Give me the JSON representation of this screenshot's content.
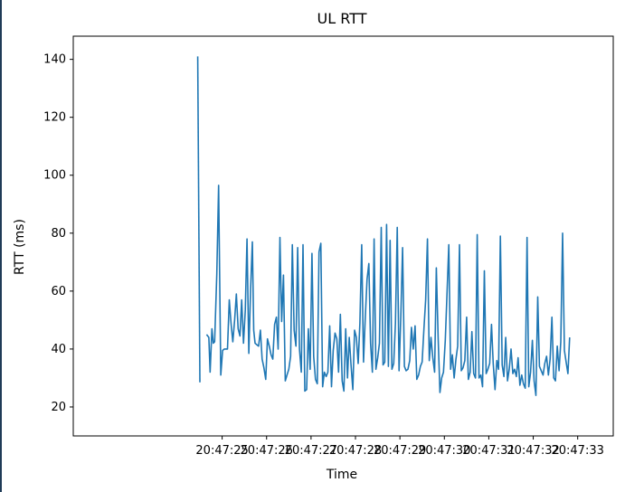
{
  "chart_data": {
    "type": "line",
    "title": "UL RTT",
    "xlabel": "Time",
    "ylabel": "RTT (ms)",
    "ylim": [
      10,
      148
    ],
    "xlim": [
      -3.35,
      8.8
    ],
    "yticks": [
      20,
      40,
      60,
      80,
      100,
      120,
      140
    ],
    "x_tick_labels": [
      "20:47:25",
      "20:47:26",
      "20:47:27",
      "20:47:28",
      "20:47:29",
      "20:47:30",
      "20:47:31",
      "20:47:32",
      "20:47:33"
    ],
    "x_tick_values": [
      0,
      1,
      2,
      3,
      4,
      5,
      6,
      7,
      8
    ],
    "grid": false,
    "legend": "none",
    "line_color": "#1f77b4",
    "series": [
      {
        "segments": [
          {
            "x": [
              -0.55,
              -0.5
            ],
            "y": [
              141,
              28.5
            ]
          },
          {
            "x": [
              -0.35,
              -0.3,
              -0.27,
              -0.23,
              -0.2,
              -0.17,
              -0.12,
              -0.08,
              -0.03,
              0.01,
              0.05,
              0.08,
              0.12,
              0.16,
              0.2,
              0.24,
              0.28,
              0.32,
              0.36,
              0.4,
              0.44,
              0.48,
              0.52,
              0.56,
              0.6,
              0.64,
              0.68,
              0.71,
              0.74,
              0.78,
              0.82,
              0.86,
              0.9,
              0.94,
              0.98,
              1.02,
              1.06,
              1.1,
              1.14,
              1.18,
              1.22,
              1.26,
              1.3,
              1.34,
              1.38,
              1.42,
              1.46,
              1.5,
              1.54,
              1.58,
              1.62,
              1.66,
              1.7,
              1.74,
              1.78,
              1.82,
              1.86,
              1.9,
              1.94,
              1.98,
              2.02,
              2.06,
              2.1,
              2.14,
              2.18,
              2.22,
              2.26,
              2.3,
              2.34,
              2.38,
              2.42,
              2.46,
              2.5,
              2.54,
              2.58,
              2.62,
              2.66,
              2.7,
              2.74,
              2.78,
              2.82,
              2.86,
              2.9,
              2.94,
              2.98,
              3.02,
              3.06,
              3.1,
              3.14,
              3.18,
              3.22,
              3.26,
              3.3,
              3.34,
              3.38,
              3.42,
              3.46,
              3.5,
              3.54,
              3.58,
              3.62,
              3.66,
              3.7,
              3.74,
              3.78,
              3.82,
              3.86,
              3.9,
              3.94,
              3.98,
              4.02,
              4.06,
              4.1,
              4.14,
              4.18,
              4.22,
              4.26,
              4.3,
              4.34,
              4.38,
              4.42,
              4.46,
              4.5,
              4.54,
              4.58,
              4.62,
              4.66,
              4.7,
              4.74,
              4.78,
              4.82,
              4.86,
              4.9,
              4.94,
              4.98,
              5.02,
              5.06,
              5.1,
              5.14,
              5.18,
              5.22,
              5.26,
              5.3,
              5.34,
              5.38,
              5.42,
              5.46,
              5.5,
              5.54,
              5.58,
              5.62,
              5.66,
              5.7,
              5.74,
              5.78,
              5.82,
              5.86,
              5.9,
              5.94,
              5.98,
              6.02,
              6.06,
              6.1,
              6.14,
              6.18,
              6.22,
              6.26,
              6.3,
              6.34,
              6.38,
              6.42,
              6.46,
              6.5,
              6.54,
              6.58,
              6.62,
              6.66,
              6.7,
              6.74,
              6.78,
              6.82,
              6.86,
              6.9,
              6.94,
              6.98,
              7.02,
              7.06,
              7.1,
              7.14,
              7.18,
              7.22,
              7.26,
              7.3,
              7.34,
              7.38,
              7.42,
              7.46,
              7.5,
              7.54,
              7.58,
              7.62,
              7.66,
              7.7,
              7.74,
              7.78,
              7.82
            ],
            "y": [
              45,
              44,
              32,
              47,
              42,
              42.5,
              66,
              96.5,
              31,
              39.5,
              40,
              40,
              40,
              57,
              49,
              42.5,
              50,
              59,
              47,
              44.5,
              57,
              42,
              53.5,
              78,
              38.5,
              61,
              77,
              46.5,
              42,
              41.5,
              41,
              46.5,
              36.5,
              33.5,
              29.5,
              43.5,
              41,
              38,
              36.5,
              48.5,
              51,
              40,
              78.5,
              49.5,
              65.5,
              29,
              31,
              33,
              37.5,
              76,
              46.5,
              41,
              75,
              40,
              32,
              76,
              25.5,
              26,
              47,
              33,
              73,
              37.5,
              29.5,
              28,
              73.5,
              76.5,
              27,
              32,
              30.5,
              32,
              48,
              27,
              39.5,
              45.5,
              43.5,
              32,
              52,
              29,
              25.5,
              47,
              30,
              44,
              34.5,
              26,
              46.5,
              44,
              35,
              49,
              76,
              35.5,
              50.5,
              64,
              69.5,
              42,
              32,
              78,
              33,
              37,
              42,
              82,
              34.5,
              35.5,
              83,
              34,
              77.5,
              33,
              35,
              49,
              82,
              32.5,
              51,
              75,
              34,
              32.5,
              33,
              36,
              47.5,
              40,
              48,
              29.5,
              31,
              34,
              35.5,
              47,
              57,
              78,
              36,
              44,
              37,
              32,
              68,
              44,
              25,
              30,
              32,
              43,
              59,
              76,
              33,
              38,
              30,
              36.5,
              41,
              76,
              32.5,
              33.5,
              36,
              51,
              29.5,
              32,
              46,
              31.5,
              30,
              79.5,
              30,
              31,
              27,
              67,
              31.5,
              33,
              35,
              48.5,
              35,
              26,
              36,
              33,
              79,
              34.5,
              30.5,
              44,
              29,
              33,
              40,
              31.5,
              33,
              30.5,
              37,
              27.5,
              31,
              28,
              26.5,
              78.5,
              27,
              32,
              43,
              29,
              24,
              58,
              34,
              32.5,
              31,
              35,
              37.5,
              31,
              36.5,
              51,
              30,
              29,
              41,
              32.5,
              42.5,
              80,
              39.5,
              35.5,
              31.5,
              44
            ]
          }
        ]
      }
    ]
  }
}
